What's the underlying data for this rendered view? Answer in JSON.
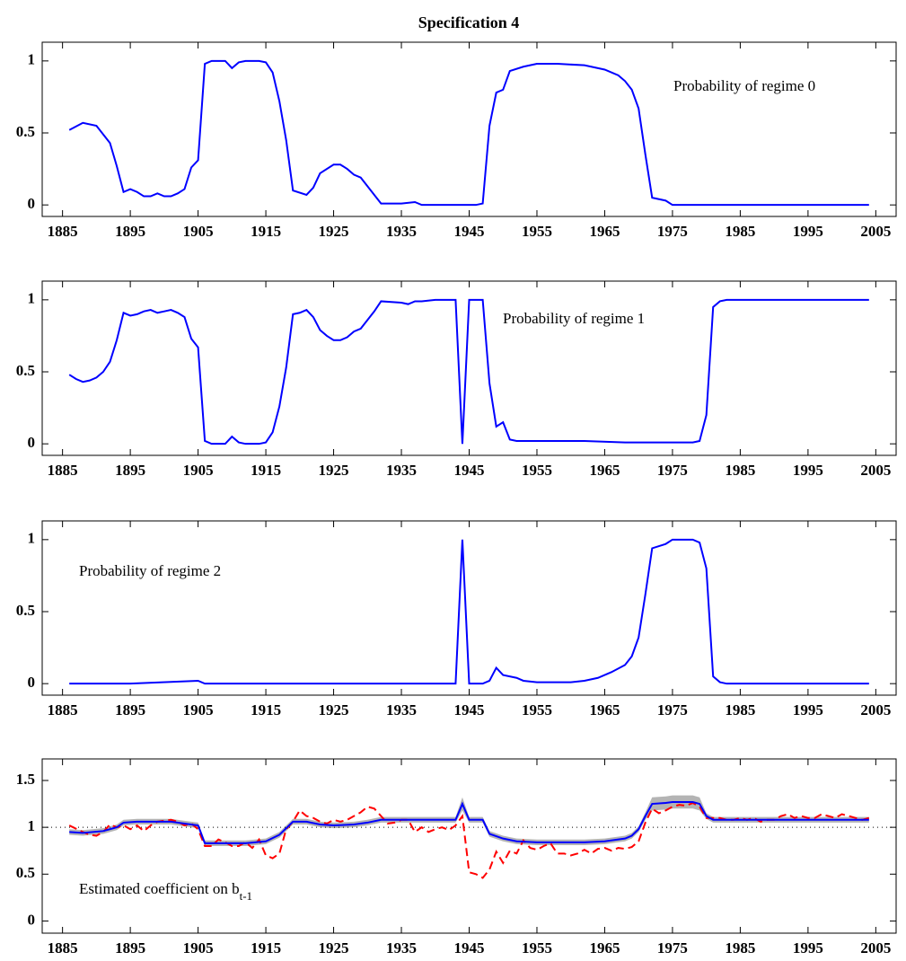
{
  "chart_data": [
    {
      "type": "line",
      "title": "Specification 4",
      "annotation": "Probability of regime 0",
      "xlim": [
        1882,
        2008
      ],
      "xticks": [
        1885,
        1895,
        1905,
        1915,
        1925,
        1935,
        1945,
        1955,
        1965,
        1975,
        1985,
        1995,
        2005
      ],
      "ylim": [
        -0.08,
        1.13
      ],
      "yticks": [
        0,
        0.5,
        1
      ],
      "series": [
        {
          "color": "#0000ff",
          "style": "solid",
          "x": [
            1886,
            1888,
            1890,
            1892,
            1893,
            1894,
            1895,
            1896,
            1897,
            1898,
            1899,
            1900,
            1901,
            1902,
            1903,
            1904,
            1905,
            1906,
            1907,
            1909,
            1910,
            1911,
            1912,
            1914,
            1915,
            1916,
            1917,
            1918,
            1919,
            1921,
            1922,
            1923,
            1925,
            1926,
            1927,
            1928,
            1929,
            1930,
            1931,
            1932,
            1935,
            1937,
            1938,
            1946,
            1947,
            1948,
            1949,
            1950,
            1951,
            1953,
            1955,
            1958,
            1962,
            1965,
            1967,
            1968,
            1969,
            1970,
            1971,
            1972,
            1974,
            1975,
            2004
          ],
          "values": [
            0.52,
            0.57,
            0.55,
            0.43,
            0.27,
            0.09,
            0.11,
            0.09,
            0.06,
            0.06,
            0.08,
            0.06,
            0.06,
            0.08,
            0.11,
            0.26,
            0.31,
            0.98,
            1,
            1,
            0.95,
            0.99,
            1,
            1,
            0.99,
            0.92,
            0.72,
            0.45,
            0.1,
            0.07,
            0.12,
            0.22,
            0.28,
            0.28,
            0.25,
            0.21,
            0.19,
            0.13,
            0.07,
            0.01,
            0.01,
            0.02,
            0,
            0,
            0.01,
            0.55,
            0.78,
            0.8,
            0.93,
            0.96,
            0.98,
            0.98,
            0.97,
            0.94,
            0.9,
            0.86,
            0.8,
            0.67,
            0.35,
            0.05,
            0.03,
            0,
            0
          ]
        }
      ]
    },
    {
      "type": "line",
      "annotation": "Probability of regime 1",
      "xlim": [
        1882,
        2008
      ],
      "xticks": [
        1885,
        1895,
        1905,
        1915,
        1925,
        1935,
        1945,
        1955,
        1965,
        1975,
        1985,
        1995,
        2005
      ],
      "ylim": [
        -0.08,
        1.13
      ],
      "yticks": [
        0,
        0.5,
        1
      ],
      "series": [
        {
          "color": "#0000ff",
          "style": "solid",
          "x": [
            1886,
            1887,
            1888,
            1889,
            1890,
            1891,
            1892,
            1893,
            1894,
            1895,
            1896,
            1897,
            1898,
            1899,
            1900,
            1901,
            1902,
            1903,
            1904,
            1905,
            1906,
            1907,
            1909,
            1910,
            1911,
            1912,
            1914,
            1915,
            1916,
            1917,
            1918,
            1919,
            1920,
            1921,
            1922,
            1923,
            1924,
            1925,
            1926,
            1927,
            1928,
            1929,
            1930,
            1931,
            1932,
            1935,
            1936,
            1937,
            1938,
            1940,
            1943,
            1944,
            1945,
            1946,
            1947,
            1948,
            1949,
            1950,
            1951,
            1952,
            1962,
            1968,
            1975,
            1978,
            1979,
            1980,
            1981,
            1982,
            1983,
            2004
          ],
          "values": [
            0.48,
            0.45,
            0.43,
            0.44,
            0.46,
            0.5,
            0.57,
            0.72,
            0.91,
            0.89,
            0.9,
            0.92,
            0.93,
            0.91,
            0.92,
            0.93,
            0.91,
            0.88,
            0.73,
            0.67,
            0.02,
            0,
            0,
            0.05,
            0.01,
            0,
            0,
            0.01,
            0.08,
            0.26,
            0.53,
            0.9,
            0.91,
            0.93,
            0.88,
            0.79,
            0.75,
            0.72,
            0.72,
            0.74,
            0.78,
            0.8,
            0.86,
            0.92,
            0.99,
            0.98,
            0.97,
            0.99,
            0.99,
            1,
            1,
            0,
            1,
            1,
            1,
            0.42,
            0.12,
            0.15,
            0.03,
            0.02,
            0.02,
            0.01,
            0.01,
            0.01,
            0.02,
            0.2,
            0.95,
            0.99,
            1,
            1
          ]
        }
      ]
    },
    {
      "type": "line",
      "annotation": "Probability of regime 2",
      "xlim": [
        1882,
        2008
      ],
      "xticks": [
        1885,
        1895,
        1905,
        1915,
        1925,
        1935,
        1945,
        1955,
        1965,
        1975,
        1985,
        1995,
        2005
      ],
      "ylim": [
        -0.08,
        1.13
      ],
      "yticks": [
        0,
        0.5,
        1
      ],
      "series": [
        {
          "color": "#0000ff",
          "style": "solid",
          "x": [
            1886,
            1895,
            1905,
            1906,
            1918,
            1943,
            1944,
            1945,
            1947,
            1948,
            1949,
            1950,
            1952,
            1953,
            1955,
            1960,
            1962,
            1964,
            1966,
            1968,
            1969,
            1970,
            1971,
            1972,
            1974,
            1975,
            1978,
            1979,
            1980,
            1981,
            1982,
            1983,
            2004
          ],
          "values": [
            0,
            0,
            0.02,
            0,
            0,
            0,
            1,
            0,
            0,
            0.02,
            0.11,
            0.06,
            0.04,
            0.02,
            0.01,
            0.01,
            0.02,
            0.04,
            0.08,
            0.13,
            0.19,
            0.32,
            0.62,
            0.94,
            0.97,
            1,
            1,
            0.98,
            0.8,
            0.05,
            0.01,
            0,
            0
          ]
        }
      ]
    },
    {
      "type": "line",
      "annotation": "Estimated coefficient on b",
      "annotation_sub": "t-1",
      "xlim": [
        1882,
        2008
      ],
      "xticks": [
        1885,
        1895,
        1905,
        1915,
        1925,
        1935,
        1945,
        1955,
        1965,
        1975,
        1985,
        1995,
        2005
      ],
      "ylim": [
        -0.13,
        1.73
      ],
      "yticks": [
        0,
        0.5,
        1,
        1.5
      ],
      "hline": 1,
      "band": {
        "color": "#b4b4b4",
        "x": [
          1886,
          1888,
          1891,
          1893,
          1894,
          1896,
          1901,
          1903,
          1905,
          1906,
          1912,
          1915,
          1917,
          1919,
          1921,
          1923,
          1925,
          1928,
          1930,
          1932,
          1937,
          1943,
          1944,
          1945,
          1947,
          1948,
          1950,
          1952,
          1955,
          1962,
          1965,
          1968,
          1969,
          1970,
          1971,
          1972,
          1974,
          1975,
          1978,
          1979,
          1980,
          1981,
          2004
        ],
        "upper": [
          0.98,
          0.97,
          0.99,
          1.03,
          1.08,
          1.09,
          1.09,
          1.07,
          1.05,
          0.86,
          0.86,
          0.88,
          0.95,
          1.09,
          1.09,
          1.06,
          1.05,
          1.06,
          1.08,
          1.11,
          1.11,
          1.11,
          1.32,
          1.11,
          1.11,
          0.96,
          0.91,
          0.88,
          0.87,
          0.87,
          0.88,
          0.91,
          0.94,
          1.01,
          1.16,
          1.32,
          1.33,
          1.34,
          1.34,
          1.32,
          1.15,
          1.11,
          1.11
        ],
        "lower": [
          0.92,
          0.91,
          0.93,
          0.97,
          1.02,
          1.03,
          1.03,
          1.01,
          0.99,
          0.8,
          0.8,
          0.82,
          0.89,
          1.03,
          1.03,
          1.0,
          0.99,
          1.0,
          1.02,
          1.05,
          1.05,
          1.05,
          1.18,
          1.05,
          1.05,
          0.9,
          0.85,
          0.82,
          0.81,
          0.81,
          0.82,
          0.85,
          0.88,
          0.95,
          1.08,
          1.18,
          1.19,
          1.2,
          1.2,
          1.18,
          1.09,
          1.05,
          1.05
        ]
      },
      "series": [
        {
          "color": "#ff0000",
          "style": "dashed",
          "x": [
            1886,
            1888,
            1889,
            1890,
            1891,
            1892,
            1893,
            1894,
            1895,
            1896,
            1897,
            1898,
            1899,
            1900,
            1901,
            1902,
            1903,
            1904,
            1905,
            1906,
            1907,
            1908,
            1909,
            1910,
            1911,
            1912,
            1913,
            1914,
            1915,
            1916,
            1917,
            1918,
            1919,
            1920,
            1921,
            1922,
            1923,
            1924,
            1925,
            1926,
            1927,
            1928,
            1929,
            1930,
            1931,
            1932,
            1933,
            1934,
            1935,
            1936,
            1937,
            1938,
            1939,
            1940,
            1941,
            1942,
            1943,
            1944,
            1945,
            1946,
            1947,
            1948,
            1949,
            1950,
            1951,
            1952,
            1953,
            1954,
            1955,
            1956,
            1957,
            1958,
            1959,
            1960,
            1961,
            1962,
            1963,
            1964,
            1965,
            1966,
            1967,
            1968,
            1969,
            1970,
            1971,
            1972,
            1973,
            1974,
            1975,
            1976,
            1977,
            1978,
            1979,
            1980,
            1981,
            1982,
            1983,
            1984,
            1985,
            1986,
            1987,
            1988,
            1989,
            1990,
            1991,
            1992,
            1993,
            1994,
            1995,
            1996,
            1997,
            1998,
            1999,
            2000,
            2001,
            2002,
            2003,
            2004
          ],
          "values": [
            1.02,
            0.95,
            0.92,
            0.91,
            0.95,
            1.03,
            1.0,
            1.02,
            0.98,
            1.02,
            0.96,
            1.02,
            1.06,
            1.07,
            1.08,
            1.06,
            1.02,
            1.04,
            0.98,
            0.8,
            0.8,
            0.87,
            0.84,
            0.8,
            0.8,
            0.84,
            0.78,
            0.87,
            0.7,
            0.67,
            0.72,
            0.98,
            1.06,
            1.18,
            1.12,
            1.1,
            1.06,
            1.04,
            1.08,
            1.06,
            1.08,
            1.12,
            1.16,
            1.22,
            1.2,
            1.12,
            1.04,
            1.05,
            1.08,
            1.08,
            0.95,
            1.0,
            0.95,
            0.98,
            1.0,
            0.97,
            1.02,
            1.12,
            0.52,
            0.5,
            0.46,
            0.55,
            0.74,
            0.62,
            0.75,
            0.72,
            0.86,
            0.78,
            0.76,
            0.8,
            0.83,
            0.72,
            0.72,
            0.7,
            0.72,
            0.76,
            0.72,
            0.77,
            0.78,
            0.75,
            0.78,
            0.77,
            0.79,
            0.85,
            1.05,
            1.2,
            1.15,
            1.18,
            1.22,
            1.24,
            1.23,
            1.26,
            1.22,
            1.1,
            1.1,
            1.1,
            1.08,
            1.08,
            1.1,
            1.08,
            1.1,
            1.06,
            1.08,
            1.08,
            1.12,
            1.14,
            1.1,
            1.12,
            1.1,
            1.1,
            1.14,
            1.12,
            1.1,
            1.14,
            1.12,
            1.1,
            1.08,
            1.1
          ]
        },
        {
          "color": "#0000ff",
          "style": "solid",
          "x": [
            1886,
            1888,
            1891,
            1893,
            1894,
            1896,
            1901,
            1903,
            1905,
            1906,
            1912,
            1915,
            1917,
            1919,
            1921,
            1923,
            1925,
            1928,
            1930,
            1932,
            1937,
            1943,
            1944,
            1945,
            1947,
            1948,
            1950,
            1952,
            1955,
            1962,
            1965,
            1968,
            1969,
            1970,
            1971,
            1972,
            1974,
            1975,
            1978,
            1979,
            1980,
            1981,
            2004
          ],
          "values": [
            0.95,
            0.94,
            0.96,
            1.0,
            1.05,
            1.06,
            1.06,
            1.04,
            1.02,
            0.83,
            0.83,
            0.85,
            0.92,
            1.06,
            1.06,
            1.03,
            1.02,
            1.03,
            1.05,
            1.08,
            1.08,
            1.08,
            1.25,
            1.08,
            1.08,
            0.93,
            0.88,
            0.85,
            0.84,
            0.84,
            0.85,
            0.88,
            0.91,
            0.98,
            1.12,
            1.25,
            1.26,
            1.27,
            1.27,
            1.25,
            1.12,
            1.08,
            1.08
          ]
        }
      ]
    }
  ]
}
